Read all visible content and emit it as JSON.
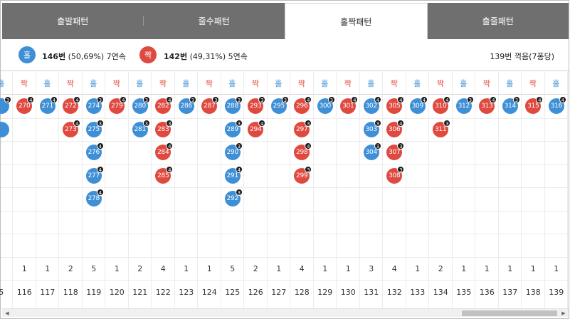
{
  "tabs": [
    {
      "label": "출발패턴",
      "active": false
    },
    {
      "label": "줄수패턴",
      "active": false
    },
    {
      "label": "홀짝패턴",
      "active": true
    },
    {
      "label": "출줄패턴",
      "active": false
    }
  ],
  "summary": {
    "odd_badge": "홀",
    "odd_count": "146번",
    "odd_rest": " (50,69%) 7연속",
    "even_badge": "짝",
    "even_count": "142번",
    "even_rest": " (49,31%) 5연속",
    "right_text": "139번 꺽음(7퐁당)"
  },
  "columns": [
    {
      "type": "odd",
      "label": "홀",
      "balls": [
        {
          "n": "",
          "t": "3"
        },
        {
          "n": "",
          "t": ""
        }
      ],
      "count": "",
      "number": "5"
    },
    {
      "type": "even",
      "label": "짝",
      "balls": [
        {
          "n": "270",
          "t": "4"
        }
      ],
      "count": "1",
      "number": "116"
    },
    {
      "type": "odd",
      "label": "홀",
      "balls": [
        {
          "n": "271",
          "t": "4"
        }
      ],
      "count": "1",
      "number": "117"
    },
    {
      "type": "even",
      "label": "짝",
      "balls": [
        {
          "n": "272",
          "t": "4"
        },
        {
          "n": "273",
          "t": "4"
        }
      ],
      "count": "2",
      "number": "118"
    },
    {
      "type": "odd",
      "label": "홀",
      "balls": [
        {
          "n": "274",
          "t": "3"
        },
        {
          "n": "275",
          "t": "3"
        },
        {
          "n": "276",
          "t": "4"
        },
        {
          "n": "277",
          "t": "4"
        },
        {
          "n": "278",
          "t": "4"
        }
      ],
      "count": "5",
      "number": "119"
    },
    {
      "type": "even",
      "label": "짝",
      "balls": [
        {
          "n": "279",
          "t": "4"
        }
      ],
      "count": "1",
      "number": "120"
    },
    {
      "type": "odd",
      "label": "홀",
      "balls": [
        {
          "n": "280",
          "t": "3"
        },
        {
          "n": "281",
          "t": "3"
        }
      ],
      "count": "2",
      "number": "121"
    },
    {
      "type": "even",
      "label": "짝",
      "balls": [
        {
          "n": "282",
          "t": "4"
        },
        {
          "n": "283",
          "t": "3"
        },
        {
          "n": "284",
          "t": "4"
        },
        {
          "n": "285",
          "t": "4"
        }
      ],
      "count": "4",
      "number": "122"
    },
    {
      "type": "odd",
      "label": "홀",
      "balls": [
        {
          "n": "286",
          "t": "3"
        }
      ],
      "count": "1",
      "number": "123"
    },
    {
      "type": "even",
      "label": "짝",
      "balls": [
        {
          "n": "287",
          "t": "3"
        }
      ],
      "count": "1",
      "number": "124"
    },
    {
      "type": "odd",
      "label": "홀",
      "balls": [
        {
          "n": "288",
          "t": "3"
        },
        {
          "n": "289",
          "t": "3"
        },
        {
          "n": "290",
          "t": "3"
        },
        {
          "n": "291",
          "t": "4"
        },
        {
          "n": "292",
          "t": "3"
        }
      ],
      "count": "5",
      "number": "125"
    },
    {
      "type": "even",
      "label": "짝",
      "balls": [
        {
          "n": "293",
          "t": "3"
        },
        {
          "n": "294",
          "t": "4"
        }
      ],
      "count": "2",
      "number": "126"
    },
    {
      "type": "odd",
      "label": "홀",
      "balls": [
        {
          "n": "295",
          "t": "3"
        }
      ],
      "count": "1",
      "number": "127"
    },
    {
      "type": "even",
      "label": "짝",
      "balls": [
        {
          "n": "296",
          "t": "4"
        },
        {
          "n": "297",
          "t": "3"
        },
        {
          "n": "298",
          "t": "4"
        },
        {
          "n": "299",
          "t": "3"
        }
      ],
      "count": "4",
      "number": "128"
    },
    {
      "type": "odd",
      "label": "홀",
      "balls": [
        {
          "n": "300",
          "t": "3"
        }
      ],
      "count": "1",
      "number": "129"
    },
    {
      "type": "even",
      "label": "짝",
      "balls": [
        {
          "n": "301",
          "t": "4"
        }
      ],
      "count": "1",
      "number": "130"
    },
    {
      "type": "odd",
      "label": "홀",
      "balls": [
        {
          "n": "302",
          "t": "4"
        },
        {
          "n": "303",
          "t": "3"
        },
        {
          "n": "304",
          "t": "3"
        }
      ],
      "count": "3",
      "number": "131"
    },
    {
      "type": "even",
      "label": "짝",
      "balls": [
        {
          "n": "305",
          "t": "4"
        },
        {
          "n": "306",
          "t": "4"
        },
        {
          "n": "307",
          "t": "3"
        },
        {
          "n": "308",
          "t": "3"
        }
      ],
      "count": "4",
      "number": "132"
    },
    {
      "type": "odd",
      "label": "홀",
      "balls": [
        {
          "n": "309",
          "t": "4"
        }
      ],
      "count": "1",
      "number": "133"
    },
    {
      "type": "even",
      "label": "짝",
      "balls": [
        {
          "n": "310",
          "t": "4"
        },
        {
          "n": "311",
          "t": "3"
        }
      ],
      "count": "2",
      "number": "134"
    },
    {
      "type": "odd",
      "label": "홀",
      "balls": [
        {
          "n": "312",
          "t": "3"
        }
      ],
      "count": "1",
      "number": "135"
    },
    {
      "type": "even",
      "label": "짝",
      "balls": [
        {
          "n": "313",
          "t": "4"
        }
      ],
      "count": "1",
      "number": "136"
    },
    {
      "type": "odd",
      "label": "홀",
      "balls": [
        {
          "n": "314",
          "t": "3"
        }
      ],
      "count": "1",
      "number": "137"
    },
    {
      "type": "even",
      "label": "짝",
      "balls": [
        {
          "n": "315",
          "t": "4"
        }
      ],
      "count": "1",
      "number": "138"
    },
    {
      "type": "odd",
      "label": "홀",
      "balls": [
        {
          "n": "316",
          "t": "4"
        }
      ],
      "count": "1",
      "number": "139"
    }
  ],
  "colors": {
    "odd": "#3f8fd6",
    "even": "#e0493f",
    "tab_bg": "#6f6f6f"
  }
}
